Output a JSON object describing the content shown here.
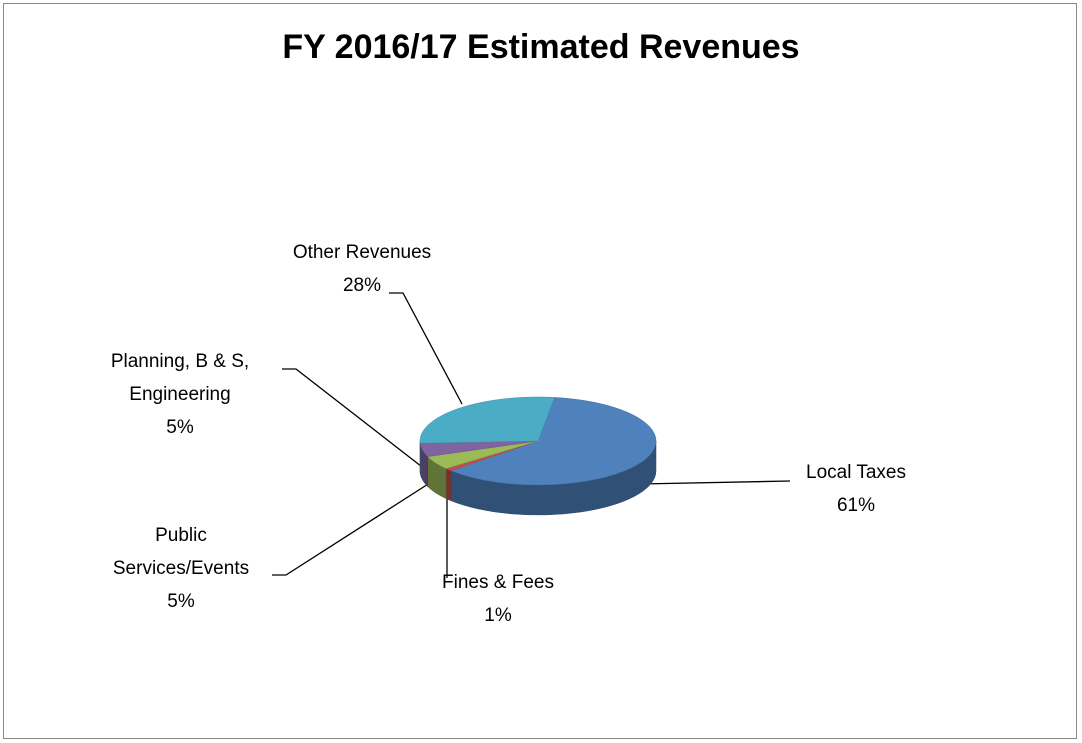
{
  "chart_data": {
    "type": "pie",
    "title": "FY 2016/17 Estimated Revenues",
    "categories": [
      "Local Taxes",
      "Fines & Fees",
      "Public Services/Events",
      "Planning, B & S, Engineering",
      "Other Revenues"
    ],
    "values": [
      61,
      1,
      5,
      5,
      28
    ],
    "value_labels": [
      "61%",
      "1%",
      "5%",
      "5%",
      "28%"
    ],
    "colors": [
      "#4f81bd",
      "#c0504d",
      "#9bbb59",
      "#8064a2",
      "#4bacc6"
    ]
  }
}
